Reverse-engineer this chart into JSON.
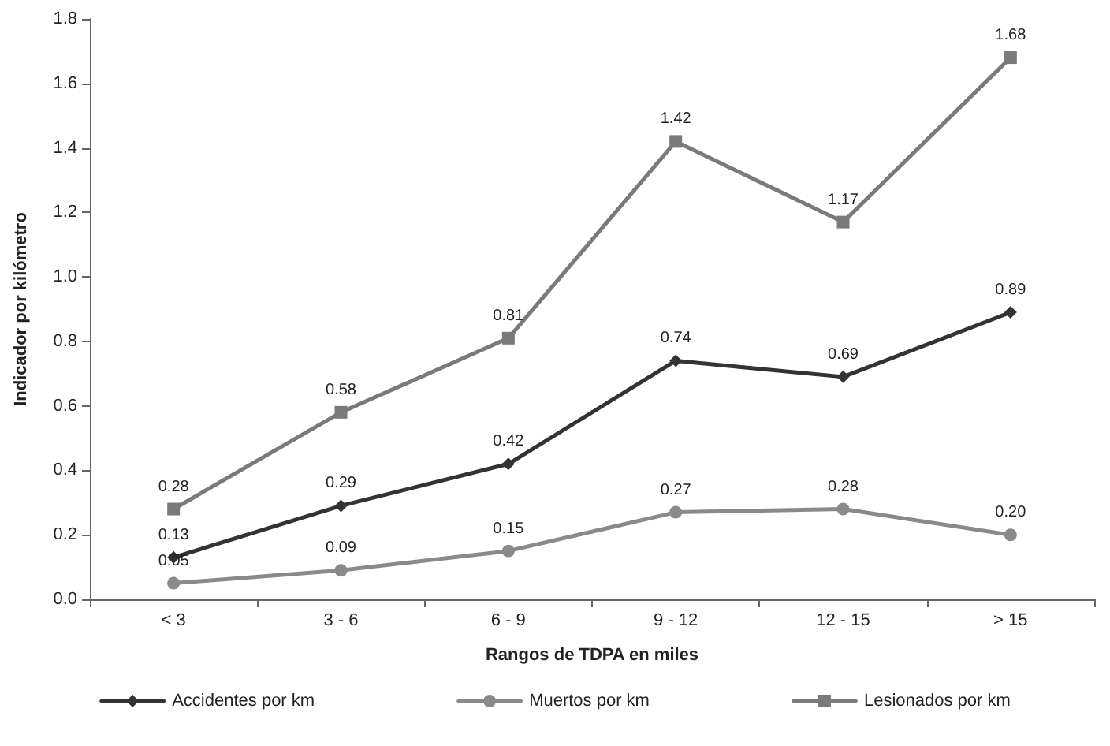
{
  "chart_data": {
    "type": "line",
    "xlabel": "Rangos de TDPA en miles",
    "ylabel": "Indicador por kilómetro",
    "categories": [
      "< 3",
      "3 - 6",
      "6 - 9",
      "9 - 12",
      "12 - 15",
      "> 15"
    ],
    "series": [
      {
        "name": "Accidentes por km",
        "color": "#333333",
        "marker": "diamond",
        "values": [
          0.13,
          0.29,
          0.42,
          0.74,
          0.69,
          0.89
        ],
        "value_labels": [
          "0.13",
          "0.29",
          "0.42",
          "0.74",
          "0.69",
          "0.89"
        ]
      },
      {
        "name": "Muertos por km",
        "color": "#8a8a8a",
        "marker": "circle",
        "values": [
          0.05,
          0.09,
          0.15,
          0.27,
          0.28,
          0.2
        ],
        "value_labels": [
          "0.05",
          "0.09",
          "0.15",
          "0.27",
          "0.28",
          "0.20"
        ]
      },
      {
        "name": "Lesionados por km",
        "color": "#7a7a7a",
        "marker": "square",
        "values": [
          0.28,
          0.58,
          0.81,
          1.42,
          1.17,
          1.68
        ],
        "value_labels": [
          "0.28",
          "0.58",
          "0.81",
          "1.42",
          "1.17",
          "1.68"
        ]
      }
    ],
    "ylim": [
      0,
      1.8
    ],
    "yticks": [
      {
        "value": 0,
        "label": "0.0"
      },
      {
        "value": 0.2,
        "label": "0.2"
      },
      {
        "value": 0.4,
        "label": "0.4"
      },
      {
        "value": 0.6,
        "label": "0.6"
      },
      {
        "value": 0.8,
        "label": "0.8"
      },
      {
        "value": 1,
        "label": "1.0"
      },
      {
        "value": 1.2,
        "label": "1.2"
      },
      {
        "value": 1.4,
        "label": "1.4"
      },
      {
        "value": 1.6,
        "label": "1.6"
      },
      {
        "value": 1.8,
        "label": "1.8"
      }
    ],
    "grid": false,
    "legend": "bottom",
    "line_style": "solid"
  }
}
